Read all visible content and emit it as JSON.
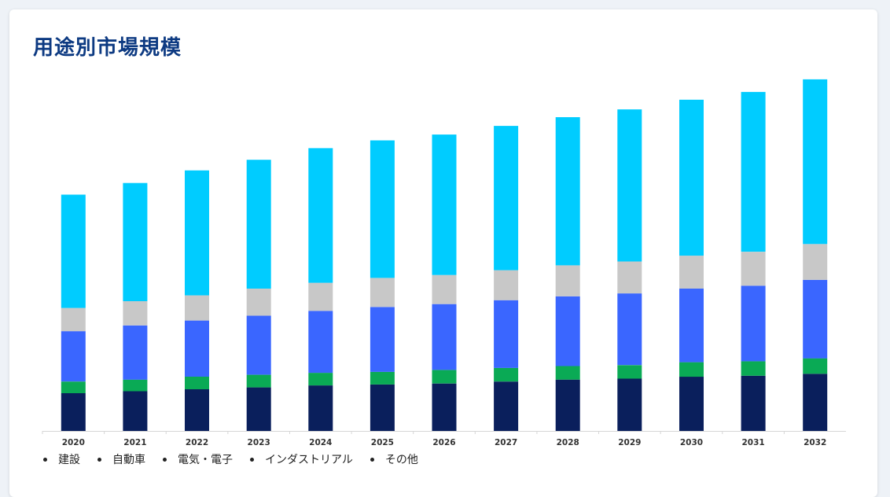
{
  "title": "用途別市場規模",
  "chart_data": {
    "type": "bar",
    "stacked": true,
    "categories": [
      "2020",
      "2021",
      "2022",
      "2023",
      "2024",
      "2025",
      "2026",
      "2027",
      "2028",
      "2029",
      "2030",
      "2031",
      "2032"
    ],
    "series": [
      {
        "name": "建設",
        "color": "#0a1f5c",
        "values": [
          39,
          41,
          43,
          45,
          47,
          48,
          49,
          51,
          53,
          54,
          56,
          57,
          59
        ]
      },
      {
        "name": "自動車",
        "color": "#0aaa55",
        "values": [
          12,
          12,
          13,
          13,
          13,
          13,
          14,
          14,
          14,
          14,
          15,
          15,
          16
        ]
      },
      {
        "name": "電気・電子",
        "color": "#3a66ff",
        "values": [
          52,
          56,
          58,
          61,
          64,
          67,
          68,
          70,
          72,
          74,
          76,
          78,
          81
        ]
      },
      {
        "name": "インダストリアル",
        "color": "#c8c8c8",
        "values": [
          24,
          25,
          26,
          28,
          29,
          30,
          30,
          31,
          32,
          33,
          34,
          35,
          37
        ]
      },
      {
        "name": "その他",
        "color": "#00ccff",
        "values": [
          117,
          122,
          129,
          133,
          139,
          142,
          145,
          149,
          153,
          157,
          161,
          165,
          170
        ]
      }
    ],
    "legend": "bottom-left",
    "grid": false,
    "ylim": [
      0,
      380
    ]
  }
}
